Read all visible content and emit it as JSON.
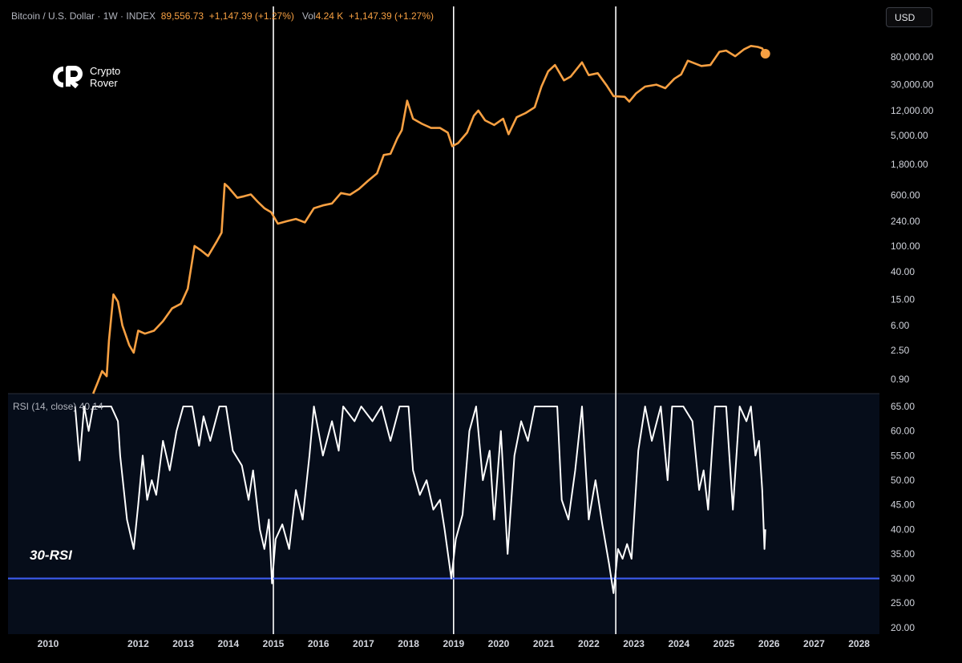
{
  "header": {
    "symbol": "Bitcoin / U.S. Dollar · 1W · INDEX",
    "last_price": "89,556.73",
    "change": "+1,147.39 (+1.27%)",
    "vol_label": "Vol",
    "vol_value": "4.24 K",
    "vol_change": "+1,147.39 (+1.27%)"
  },
  "currency_button": "USD",
  "logo": {
    "line1": "Crypto",
    "line2": "Rover",
    "icon": "crypto-rover-logo-icon"
  },
  "rsi_legend": {
    "name": "RSI (14, close)",
    "value": "40.14"
  },
  "rsi_annotation": "30-RSI",
  "colors": {
    "price": "#f7a042",
    "rsi": "#ffffff",
    "rsi_bg": "#060d1a",
    "threshold": "#3d5cf0",
    "marker": "#ffffff"
  },
  "chart_data": {
    "type": "line",
    "title": "Bitcoin / U.S. Dollar · 1W · INDEX",
    "price_axis": {
      "scale": "log",
      "ticks": [
        {
          "v": 80000,
          "label": "80,000.00"
        },
        {
          "v": 30000,
          "label": "30,000.00"
        },
        {
          "v": 12000,
          "label": "12,000.00"
        },
        {
          "v": 5000,
          "label": "5,000.00"
        },
        {
          "v": 1800,
          "label": "1,800.00"
        },
        {
          "v": 600,
          "label": "600.00"
        },
        {
          "v": 240,
          "label": "240.00"
        },
        {
          "v": 100,
          "label": "100.00"
        },
        {
          "v": 40,
          "label": "40.00"
        },
        {
          "v": 15,
          "label": "15.00"
        },
        {
          "v": 6,
          "label": "6.00"
        },
        {
          "v": 2.5,
          "label": "2.50"
        },
        {
          "v": 0.9,
          "label": "0.90"
        }
      ]
    },
    "rsi_axis": {
      "range": [
        20,
        65
      ],
      "ticks": [
        "65.00",
        "60.00",
        "55.00",
        "50.00",
        "45.00",
        "40.00",
        "35.00",
        "30.00",
        "25.00",
        "20.00"
      ]
    },
    "x_axis": {
      "ticks": [
        "2010",
        "2012",
        "2013",
        "2014",
        "2015",
        "2016",
        "2017",
        "2018",
        "2019",
        "2020",
        "2021",
        "2022",
        "2023",
        "2024",
        "2025",
        "2026",
        "2027",
        "2028"
      ]
    },
    "vertical_markers": [
      2015.0,
      2019.0,
      2022.6
    ],
    "rsi_threshold": 30,
    "series": [
      {
        "name": "BTC Price (USD)",
        "points": [
          [
            2011.0,
            0.3
          ],
          [
            2011.1,
            0.8
          ],
          [
            2011.2,
            1.2
          ],
          [
            2011.3,
            1.0
          ],
          [
            2011.35,
            3.5
          ],
          [
            2011.45,
            18
          ],
          [
            2011.55,
            14
          ],
          [
            2011.65,
            6
          ],
          [
            2011.8,
            3
          ],
          [
            2011.9,
            2.3
          ],
          [
            2012.0,
            5
          ],
          [
            2012.15,
            4.5
          ],
          [
            2012.35,
            5
          ],
          [
            2012.55,
            7
          ],
          [
            2012.75,
            11
          ],
          [
            2012.95,
            13
          ],
          [
            2013.1,
            22
          ],
          [
            2013.25,
            100
          ],
          [
            2013.4,
            85
          ],
          [
            2013.55,
            70
          ],
          [
            2013.75,
            120
          ],
          [
            2013.85,
            160
          ],
          [
            2013.92,
            900
          ],
          [
            2014.0,
            800
          ],
          [
            2014.2,
            550
          ],
          [
            2014.35,
            580
          ],
          [
            2014.5,
            620
          ],
          [
            2014.65,
            480
          ],
          [
            2014.8,
            380
          ],
          [
            2014.95,
            330
          ],
          [
            2015.1,
            220
          ],
          [
            2015.3,
            240
          ],
          [
            2015.5,
            260
          ],
          [
            2015.7,
            230
          ],
          [
            2015.9,
            380
          ],
          [
            2016.1,
            420
          ],
          [
            2016.3,
            450
          ],
          [
            2016.5,
            650
          ],
          [
            2016.7,
            610
          ],
          [
            2016.9,
            750
          ],
          [
            2017.1,
            1000
          ],
          [
            2017.3,
            1300
          ],
          [
            2017.45,
            2500
          ],
          [
            2017.6,
            2600
          ],
          [
            2017.75,
            4500
          ],
          [
            2017.85,
            6000
          ],
          [
            2017.97,
            17000
          ],
          [
            2018.1,
            9000
          ],
          [
            2018.3,
            7500
          ],
          [
            2018.5,
            6500
          ],
          [
            2018.7,
            6500
          ],
          [
            2018.87,
            5500
          ],
          [
            2018.97,
            3400
          ],
          [
            2019.1,
            3800
          ],
          [
            2019.3,
            5500
          ],
          [
            2019.45,
            10000
          ],
          [
            2019.55,
            12000
          ],
          [
            2019.7,
            8500
          ],
          [
            2019.9,
            7200
          ],
          [
            2020.1,
            9000
          ],
          [
            2020.22,
            5200
          ],
          [
            2020.4,
            9500
          ],
          [
            2020.6,
            11000
          ],
          [
            2020.8,
            13500
          ],
          [
            2020.95,
            28000
          ],
          [
            2021.1,
            48000
          ],
          [
            2021.25,
            60000
          ],
          [
            2021.45,
            35000
          ],
          [
            2021.6,
            40000
          ],
          [
            2021.85,
            66000
          ],
          [
            2022.0,
            42000
          ],
          [
            2022.2,
            45000
          ],
          [
            2022.4,
            29000
          ],
          [
            2022.55,
            20000
          ],
          [
            2022.8,
            19500
          ],
          [
            2022.9,
            16500
          ],
          [
            2023.05,
            22000
          ],
          [
            2023.25,
            28000
          ],
          [
            2023.5,
            30000
          ],
          [
            2023.7,
            26500
          ],
          [
            2023.9,
            37000
          ],
          [
            2024.05,
            43000
          ],
          [
            2024.2,
            70000
          ],
          [
            2024.5,
            58000
          ],
          [
            2024.7,
            60000
          ],
          [
            2024.9,
            96000
          ],
          [
            2025.05,
            100000
          ],
          [
            2025.25,
            82000
          ],
          [
            2025.45,
            105000
          ],
          [
            2025.6,
            118000
          ],
          [
            2025.75,
            114000
          ],
          [
            2025.85,
            108000
          ],
          [
            2025.92,
            89556
          ]
        ]
      },
      {
        "name": "RSI (14, close)",
        "points": [
          [
            2010.6,
            65
          ],
          [
            2010.7,
            54
          ],
          [
            2010.8,
            65
          ],
          [
            2010.9,
            60
          ],
          [
            2011.0,
            65
          ],
          [
            2011.2,
            65
          ],
          [
            2011.4,
            65
          ],
          [
            2011.55,
            62
          ],
          [
            2011.6,
            55
          ],
          [
            2011.75,
            42
          ],
          [
            2011.9,
            36
          ],
          [
            2012.0,
            45
          ],
          [
            2012.1,
            55
          ],
          [
            2012.2,
            46
          ],
          [
            2012.3,
            50
          ],
          [
            2012.4,
            47
          ],
          [
            2012.55,
            58
          ],
          [
            2012.7,
            52
          ],
          [
            2012.85,
            60
          ],
          [
            2013.0,
            65
          ],
          [
            2013.2,
            65
          ],
          [
            2013.35,
            57
          ],
          [
            2013.45,
            63
          ],
          [
            2013.6,
            58
          ],
          [
            2013.8,
            65
          ],
          [
            2013.95,
            65
          ],
          [
            2014.1,
            56
          ],
          [
            2014.3,
            53
          ],
          [
            2014.45,
            46
          ],
          [
            2014.55,
            52
          ],
          [
            2014.7,
            40
          ],
          [
            2014.8,
            36
          ],
          [
            2014.9,
            42
          ],
          [
            2014.97,
            29
          ],
          [
            2015.05,
            38
          ],
          [
            2015.2,
            41
          ],
          [
            2015.35,
            36
          ],
          [
            2015.5,
            48
          ],
          [
            2015.65,
            42
          ],
          [
            2015.8,
            55
          ],
          [
            2015.9,
            65
          ],
          [
            2016.1,
            55
          ],
          [
            2016.3,
            62
          ],
          [
            2016.45,
            56
          ],
          [
            2016.55,
            65
          ],
          [
            2016.8,
            62
          ],
          [
            2016.95,
            65
          ],
          [
            2017.2,
            62
          ],
          [
            2017.4,
            65
          ],
          [
            2017.6,
            58
          ],
          [
            2017.8,
            65
          ],
          [
            2018.0,
            65
          ],
          [
            2018.1,
            52
          ],
          [
            2018.25,
            47
          ],
          [
            2018.4,
            50
          ],
          [
            2018.55,
            44
          ],
          [
            2018.7,
            46
          ],
          [
            2018.8,
            40
          ],
          [
            2018.95,
            30
          ],
          [
            2019.05,
            38
          ],
          [
            2019.2,
            43
          ],
          [
            2019.35,
            60
          ],
          [
            2019.5,
            65
          ],
          [
            2019.65,
            50
          ],
          [
            2019.8,
            56
          ],
          [
            2019.9,
            42
          ],
          [
            2020.05,
            60
          ],
          [
            2020.2,
            35
          ],
          [
            2020.35,
            55
          ],
          [
            2020.5,
            62
          ],
          [
            2020.65,
            58
          ],
          [
            2020.8,
            65
          ],
          [
            2021.0,
            65
          ],
          [
            2021.3,
            65
          ],
          [
            2021.4,
            46
          ],
          [
            2021.55,
            42
          ],
          [
            2021.7,
            52
          ],
          [
            2021.85,
            65
          ],
          [
            2022.0,
            42
          ],
          [
            2022.15,
            50
          ],
          [
            2022.3,
            41
          ],
          [
            2022.45,
            33
          ],
          [
            2022.55,
            27
          ],
          [
            2022.65,
            36
          ],
          [
            2022.75,
            34
          ],
          [
            2022.85,
            37
          ],
          [
            2022.95,
            34
          ],
          [
            2023.1,
            56
          ],
          [
            2023.25,
            65
          ],
          [
            2023.4,
            58
          ],
          [
            2023.6,
            65
          ],
          [
            2023.75,
            50
          ],
          [
            2023.85,
            65
          ],
          [
            2024.1,
            65
          ],
          [
            2024.3,
            62
          ],
          [
            2024.45,
            48
          ],
          [
            2024.55,
            52
          ],
          [
            2024.65,
            44
          ],
          [
            2024.8,
            65
          ],
          [
            2025.05,
            65
          ],
          [
            2025.2,
            44
          ],
          [
            2025.35,
            65
          ],
          [
            2025.5,
            62
          ],
          [
            2025.6,
            65
          ],
          [
            2025.7,
            55
          ],
          [
            2025.78,
            58
          ],
          [
            2025.85,
            48
          ],
          [
            2025.9,
            36
          ],
          [
            2025.92,
            40
          ]
        ]
      }
    ]
  }
}
